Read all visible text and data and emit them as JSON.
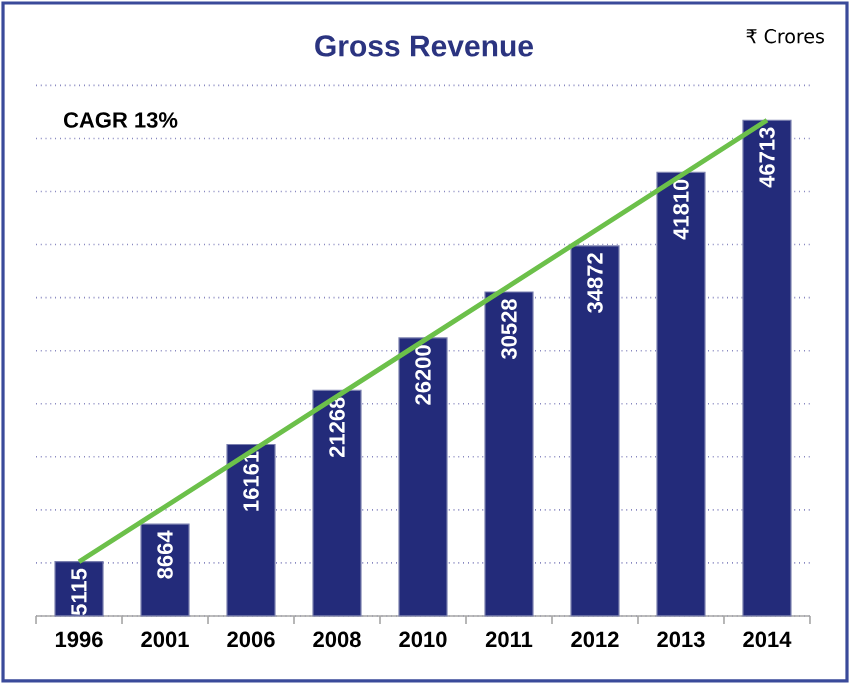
{
  "chart_data": {
    "type": "bar",
    "title": "Gross Revenue",
    "annotations": [
      "₹ Crores",
      "CAGR 13%"
    ],
    "categories": [
      "1996",
      "2001",
      "2006",
      "2008",
      "2010",
      "2011",
      "2012",
      "2013",
      "2014"
    ],
    "ylim": [
      0,
      50000
    ],
    "yticks": [
      {
        "value": 0,
        "label": null
      },
      {
        "value": 5000,
        "label": null
      },
      {
        "value": 10000,
        "label": null
      },
      {
        "value": 15000,
        "label": null
      },
      {
        "value": 20000,
        "label": null
      },
      {
        "value": 25000,
        "label": null
      },
      {
        "value": 30000,
        "label": null
      },
      {
        "value": 35000,
        "label": null
      },
      {
        "value": 40000,
        "label": null
      },
      {
        "value": 45000,
        "label": null
      },
      {
        "value": 50000,
        "label": null
      }
    ],
    "grid": "y",
    "tick_labels": "x",
    "series": [
      {
        "color": "#232b7a",
        "values": [
          5115,
          8664,
          16161,
          21268,
          26200,
          30528,
          34872,
          41810,
          46713
        ],
        "value_labels": [
          "5115",
          "8664",
          "16161",
          "21268",
          "26200",
          "30528",
          "34872",
          "41810",
          "46713"
        ]
      },
      {
        "type": "line",
        "color": "#6cc04a",
        "values": [
          5115,
          10300,
          15500,
          20700,
          25900,
          31100,
          36300,
          41500,
          46713
        ]
      }
    ]
  }
}
